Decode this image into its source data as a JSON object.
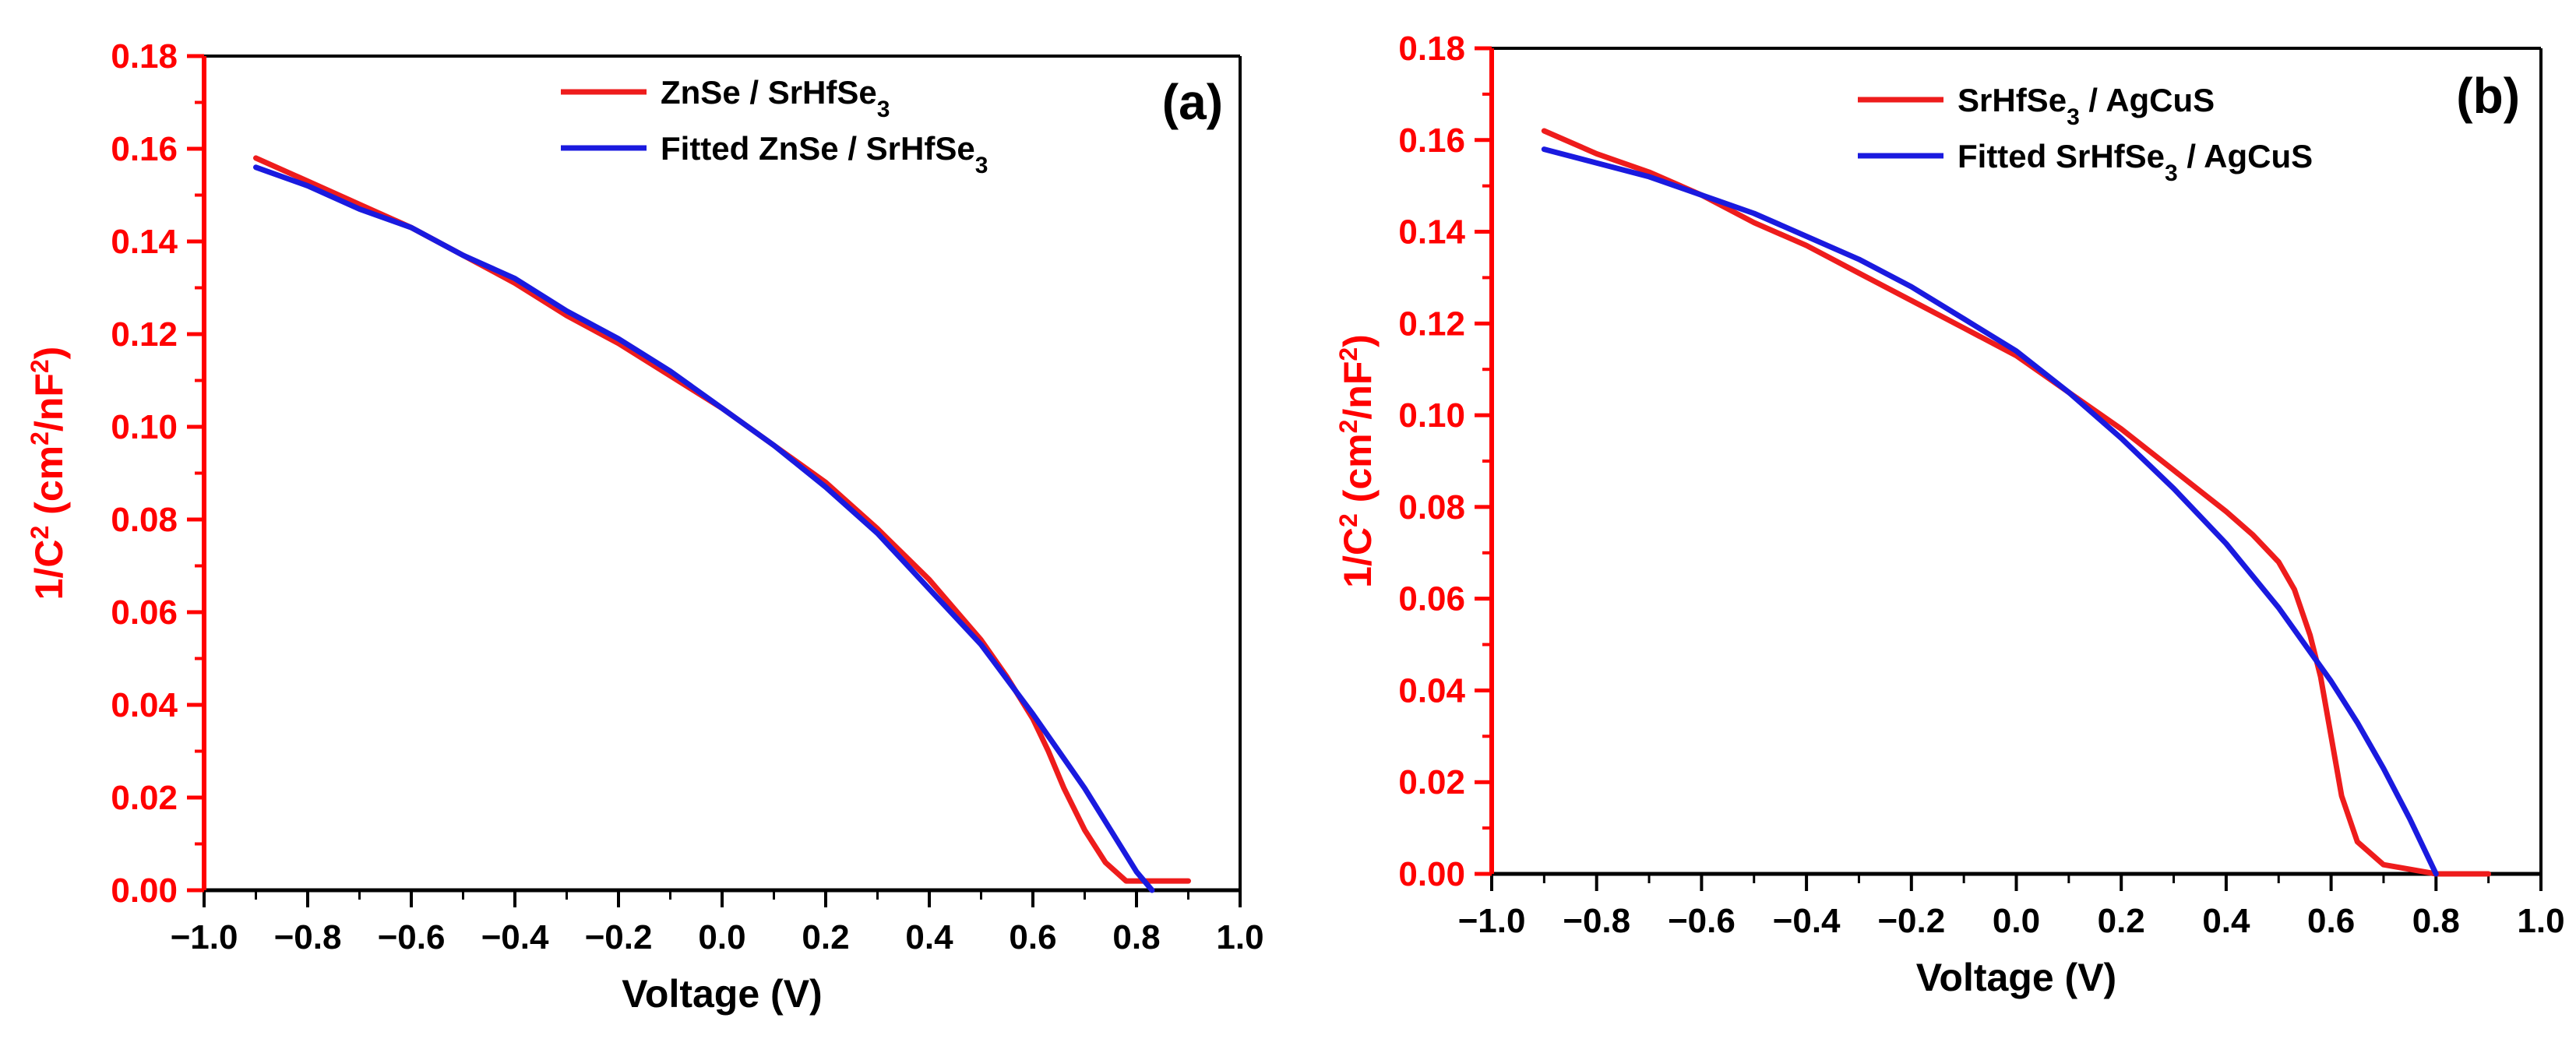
{
  "chart_data": [
    {
      "type": "line",
      "panel_label": "(a)",
      "xlabel": "Voltage (V)",
      "ylabel": {
        "base": "1/C",
        "sup1": "2",
        "mid": " (cm",
        "sup2": "2",
        "mid2": "/nF",
        "sup3": "2",
        "end": ")"
      },
      "xlim": [
        -1.0,
        1.0
      ],
      "ylim": [
        0.0,
        0.18
      ],
      "x_ticks": [
        "−1.0",
        "−0.8",
        "−0.6",
        "−0.4",
        "−0.2",
        "0.0",
        "0.2",
        "0.4",
        "0.6",
        "0.8",
        "1.0"
      ],
      "y_ticks": [
        "0.00",
        "0.02",
        "0.04",
        "0.06",
        "0.08",
        "0.10",
        "0.12",
        "0.14",
        "0.16",
        "0.18"
      ],
      "legend_position": "top-right",
      "series": [
        {
          "name": "ZnSe / SrHfSe3",
          "legend": {
            "main": "ZnSe / SrHfSe",
            "sub": "3",
            "tail": ""
          },
          "color": "#ee1c1c",
          "x": [
            -0.9,
            -0.8,
            -0.7,
            -0.6,
            -0.5,
            -0.4,
            -0.3,
            -0.2,
            -0.1,
            0.0,
            0.1,
            0.2,
            0.3,
            0.4,
            0.5,
            0.55,
            0.6,
            0.63,
            0.66,
            0.7,
            0.74,
            0.78,
            0.81,
            0.85,
            0.9
          ],
          "y": [
            0.158,
            0.153,
            0.148,
            0.143,
            0.137,
            0.131,
            0.124,
            0.118,
            0.111,
            0.104,
            0.096,
            0.088,
            0.078,
            0.067,
            0.054,
            0.046,
            0.037,
            0.03,
            0.022,
            0.013,
            0.006,
            0.002,
            0.002,
            0.002,
            0.002
          ]
        },
        {
          "name": "Fitted ZnSe / SrHfSe3",
          "legend": {
            "main": "Fitted ZnSe / SrHfSe",
            "sub": "3",
            "tail": ""
          },
          "color": "#1a1adf",
          "x": [
            -0.9,
            -0.8,
            -0.7,
            -0.6,
            -0.5,
            -0.4,
            -0.3,
            -0.2,
            -0.1,
            0.0,
            0.1,
            0.2,
            0.3,
            0.4,
            0.5,
            0.6,
            0.65,
            0.7,
            0.75,
            0.8,
            0.83
          ],
          "y": [
            0.156,
            0.152,
            0.147,
            0.143,
            0.137,
            0.132,
            0.125,
            0.119,
            0.112,
            0.104,
            0.096,
            0.087,
            0.077,
            0.065,
            0.053,
            0.038,
            0.03,
            0.022,
            0.013,
            0.004,
            0.0
          ]
        }
      ]
    },
    {
      "type": "line",
      "panel_label": "(b)",
      "xlabel": "Voltage (V)",
      "ylabel": {
        "base": "1/C",
        "sup1": "2",
        "mid": " (cm",
        "sup2": "2",
        "mid2": "/nF",
        "sup3": "2",
        "end": ")"
      },
      "xlim": [
        -1.0,
        1.0
      ],
      "ylim": [
        0.0,
        0.18
      ],
      "x_ticks": [
        "−1.0",
        "−0.8",
        "−0.6",
        "−0.4",
        "−0.2",
        "0.0",
        "0.2",
        "0.4",
        "0.6",
        "0.8",
        "1.0"
      ],
      "y_ticks": [
        "0.00",
        "0.02",
        "0.04",
        "0.06",
        "0.08",
        "0.10",
        "0.12",
        "0.14",
        "0.16",
        "0.18"
      ],
      "legend_position": "top-right",
      "series": [
        {
          "name": "SrHfSe3 / AgCuS",
          "legend": {
            "main": "SrHfSe",
            "sub": "3",
            "tail": " / AgCuS"
          },
          "color": "#ee1c1c",
          "x": [
            -0.9,
            -0.8,
            -0.7,
            -0.6,
            -0.5,
            -0.4,
            -0.3,
            -0.2,
            -0.1,
            0.0,
            0.1,
            0.2,
            0.3,
            0.4,
            0.45,
            0.5,
            0.53,
            0.56,
            0.58,
            0.6,
            0.62,
            0.65,
            0.7,
            0.75,
            0.8,
            0.85,
            0.9
          ],
          "y": [
            0.162,
            0.157,
            0.153,
            0.148,
            0.142,
            0.137,
            0.131,
            0.125,
            0.119,
            0.113,
            0.105,
            0.097,
            0.088,
            0.079,
            0.074,
            0.068,
            0.062,
            0.052,
            0.043,
            0.03,
            0.017,
            0.007,
            0.002,
            0.001,
            0.0,
            0.0,
            0.0
          ]
        },
        {
          "name": "Fitted SrHfSe3 / AgCuS",
          "legend": {
            "main": "Fitted SrHfSe",
            "sub": "3",
            "tail": " / AgCuS"
          },
          "color": "#1a1adf",
          "x": [
            -0.9,
            -0.8,
            -0.7,
            -0.6,
            -0.5,
            -0.4,
            -0.3,
            -0.2,
            -0.1,
            0.0,
            0.1,
            0.2,
            0.3,
            0.4,
            0.5,
            0.6,
            0.65,
            0.7,
            0.75,
            0.8
          ],
          "y": [
            0.158,
            0.155,
            0.152,
            0.148,
            0.144,
            0.139,
            0.134,
            0.128,
            0.121,
            0.114,
            0.105,
            0.095,
            0.084,
            0.072,
            0.058,
            0.042,
            0.033,
            0.023,
            0.012,
            0.0
          ]
        }
      ]
    }
  ]
}
